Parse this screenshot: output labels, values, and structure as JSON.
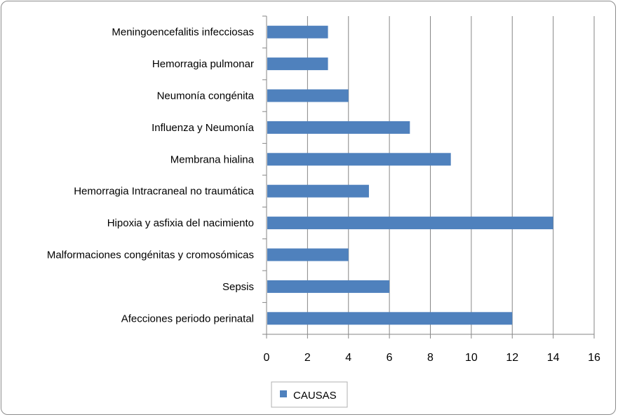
{
  "chart_data": {
    "type": "bar",
    "orientation": "horizontal",
    "title": "",
    "xlabel": "",
    "ylabel": "",
    "categories": [
      "Meningoencefalitis infecciosas",
      "Hemorragia pulmonar",
      "Neumonía congénita",
      "Influenza y Neumonía",
      "Membrana hialina",
      "Hemorragia Intracraneal no traumática",
      "Hipoxia y asfixia del nacimiento",
      "Malformaciones congénitas y cromosómicas",
      "Sepsis",
      "Afecciones periodo perinatal"
    ],
    "series": [
      {
        "name": "CAUSAS",
        "values": [
          3,
          3,
          4,
          7,
          9,
          5,
          14,
          4,
          6,
          12
        ],
        "color": "#4f81bd"
      }
    ],
    "xlim": [
      0,
      16
    ],
    "xticks": [
      "0",
      "2",
      "4",
      "6",
      "8",
      "10",
      "12",
      "14",
      "16"
    ],
    "grid": "vertical",
    "legend_position": "bottom"
  },
  "colors": {
    "bar": "#4f81bd",
    "grid": "#868686",
    "frame": "#8c8c8c"
  }
}
